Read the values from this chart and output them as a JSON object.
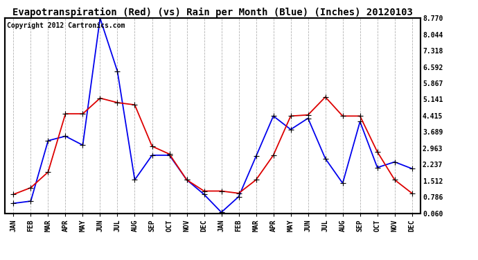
{
  "title": "Evapotranspiration (Red) (vs) Rain per Month (Blue) (Inches) 20120103",
  "copyright_text": "Copyright 2012 Cartronics.com",
  "months": [
    "JAN",
    "FEB",
    "MAR",
    "APR",
    "MAY",
    "JUN",
    "JUL",
    "AUG",
    "SEP",
    "OCT",
    "NOV",
    "DEC",
    "JAN",
    "FEB",
    "MAR",
    "APR",
    "MAY",
    "JUN",
    "JUL",
    "AUG",
    "SEP",
    "OCT",
    "NOV",
    "DEC"
  ],
  "blue_data": [
    0.5,
    0.6,
    3.3,
    3.5,
    3.1,
    8.77,
    6.4,
    1.55,
    2.65,
    2.65,
    1.55,
    0.9,
    0.1,
    0.8,
    2.6,
    4.4,
    3.8,
    4.3,
    2.5,
    1.4,
    4.15,
    2.1,
    2.35,
    2.05
  ],
  "red_data": [
    0.9,
    1.2,
    1.9,
    4.5,
    4.5,
    5.2,
    5.0,
    4.9,
    3.05,
    2.7,
    1.55,
    1.05,
    1.05,
    0.95,
    1.55,
    2.65,
    4.4,
    4.45,
    5.25,
    4.4,
    4.4,
    2.8,
    1.55,
    0.95
  ],
  "yticks": [
    0.06,
    0.786,
    1.512,
    2.237,
    2.963,
    3.689,
    4.415,
    5.141,
    5.867,
    6.592,
    7.318,
    8.044,
    8.77
  ],
  "ylim": [
    0.06,
    8.77
  ],
  "blue_color": "#0000ee",
  "red_color": "#dd0000",
  "bg_color": "#ffffff",
  "grid_color": "#aaaaaa",
  "title_fontsize": 10,
  "copyright_fontsize": 7,
  "tick_fontsize": 7,
  "ytick_fontsize": 7
}
